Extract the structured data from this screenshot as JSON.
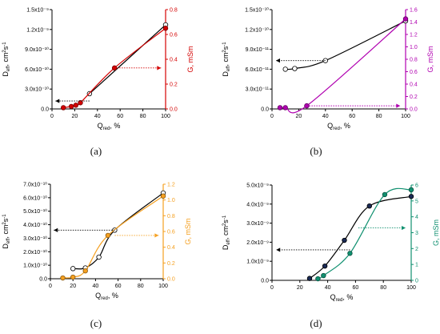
{
  "chart_data": [
    {
      "id": "a",
      "type": "line",
      "caption": "(a)",
      "xlabel": "Q",
      "xlabel_sub": "red",
      "xlabel_unit": ", %",
      "ylabel_left": "D",
      "ylabel_left_sub": "eff",
      "ylabel_left_unit": ", cm",
      "ylabel_left_sup": "2",
      "ylabel_left_tail": "s",
      "ylabel_left_sup2": "-1",
      "ylabel_right": "G, mSm",
      "xlim": [
        0,
        100
      ],
      "xticks": [
        "0",
        "20",
        "40",
        "60",
        "80",
        "100"
      ],
      "ylim_left": [
        0,
        1.5e-09
      ],
      "yticks_left": [
        "0.0",
        "3.0x10⁻¹⁰",
        "6.0x10⁻¹⁰",
        "9.0x10⁻¹⁰",
        "1.2x10⁻⁹",
        "1.5x10⁻⁹"
      ],
      "ylim_right": [
        0,
        0.8
      ],
      "yticks_right": [
        "0.0",
        "0.2",
        "0.4",
        "0.6",
        "0.8"
      ],
      "right_color": "#d40000",
      "left_color": "#000000",
      "series": [
        {
          "axis": "left",
          "marker": "open",
          "x": [
            33,
            100
          ],
          "y": [
            2.3e-10,
            1.27e-09
          ]
        },
        {
          "axis": "right",
          "marker": "filled",
          "x": [
            10,
            17,
            21,
            25,
            55,
            100
          ],
          "y": [
            0.01,
            0.02,
            0.03,
            0.05,
            0.33,
            0.65
          ]
        }
      ],
      "arrows": [
        {
          "dir": "left",
          "axis": "left",
          "y": 1.2e-10,
          "x_from": 33,
          "x_to": 3
        },
        {
          "dir": "right",
          "axis": "right",
          "y": 0.33,
          "x_from": 55,
          "x_to": 96
        }
      ]
    },
    {
      "id": "b",
      "type": "line",
      "caption": "(b)",
      "xlabel": "Q",
      "xlabel_sub": "red",
      "xlabel_unit": ", %",
      "ylabel_left": "D",
      "ylabel_left_sub": "eff",
      "ylabel_left_unit": ", cm",
      "ylabel_left_sup": "2",
      "ylabel_left_tail": "s",
      "ylabel_left_sup2": "-1",
      "ylabel_right": "G, mSm",
      "xlim": [
        0,
        100
      ],
      "xticks": [
        "0",
        "20",
        "40",
        "60",
        "80",
        "100"
      ],
      "ylim_left": [
        0,
        1.5e-10
      ],
      "yticks_left": [
        "0.0",
        "3.0x10⁻¹¹",
        "6.0x10⁻¹¹",
        "9.0x10⁻¹¹",
        "1.2x10⁻¹⁰",
        "1.5x10⁻¹⁰"
      ],
      "ylim_right": [
        0,
        1.6
      ],
      "yticks_right": [
        "0.0",
        "0.2",
        "0.4",
        "0.6",
        "0.8",
        "1.0",
        "1.2",
        "1.4",
        "1.6"
      ],
      "right_color": "#b000b0",
      "left_color": "#000000",
      "series": [
        {
          "axis": "left",
          "marker": "open",
          "x": [
            10,
            17,
            40,
            100
          ],
          "y": [
            6e-11,
            6.1e-11,
            7.3e-11,
            1.33e-10
          ]
        },
        {
          "axis": "right",
          "marker": "filled",
          "x": [
            6,
            10,
            26,
            100
          ],
          "y": [
            0.02,
            0.02,
            0.05,
            1.45
          ]
        }
      ],
      "arrows": [
        {
          "dir": "left",
          "axis": "left",
          "y": 7.3e-11,
          "x_from": 40,
          "x_to": 3
        },
        {
          "dir": "right",
          "axis": "right",
          "y": 0.05,
          "x_from": 26,
          "x_to": 96
        }
      ]
    },
    {
      "id": "c",
      "type": "line",
      "caption": "(c)",
      "xlabel": "Q",
      "xlabel_sub": "red",
      "xlabel_unit": ", %",
      "ylabel_left": "D",
      "ylabel_left_sub": "eff",
      "ylabel_left_unit": ", cm",
      "ylabel_left_sup": "2",
      "ylabel_left_tail": "s",
      "ylabel_left_sup2": "-1",
      "ylabel_right": "G, mSm",
      "xlim": [
        0,
        100
      ],
      "xticks": [
        "0",
        "20",
        "40",
        "60",
        "80",
        "100"
      ],
      "ylim_left": [
        0,
        7e-10
      ],
      "yticks_left": [
        "0.0",
        "1.0x10⁻¹⁰",
        "2.0x10⁻¹⁰",
        "3.0x10⁻¹⁰",
        "4.0x10⁻¹⁰",
        "5.0x10⁻¹⁰",
        "6.0x10⁻¹⁰",
        "7.0x10⁻¹⁰"
      ],
      "ylim_right": [
        0,
        1.2
      ],
      "yticks_right": [
        "0.0",
        "0.2",
        "0.4",
        "0.6",
        "0.8",
        "1.0",
        "1.2"
      ],
      "right_color": "#f5a020",
      "left_color": "#000000",
      "series": [
        {
          "axis": "left",
          "marker": "open",
          "x": [
            20,
            31,
            43,
            57,
            100
          ],
          "y": [
            7.5e-11,
            8e-11,
            1.6e-10,
            3.6e-10,
            6.35e-10
          ]
        },
        {
          "axis": "right",
          "marker": "filled",
          "x": [
            11,
            20,
            31,
            51,
            100
          ],
          "y": [
            0.01,
            0.02,
            0.1,
            0.55,
            1.05
          ]
        }
      ],
      "arrows": [
        {
          "dir": "left",
          "axis": "left",
          "y": 3.6e-10,
          "x_from": 57,
          "x_to": 3
        },
        {
          "dir": "right",
          "axis": "right",
          "y": 0.55,
          "x_from": 57,
          "x_to": 96
        }
      ]
    },
    {
      "id": "d",
      "type": "line",
      "caption": "(d)",
      "xlabel": "Q",
      "xlabel_sub": "red",
      "xlabel_unit": ", %",
      "ylabel_left": "D",
      "ylabel_left_sub": "eff",
      "ylabel_left_unit": ", cm",
      "ylabel_left_sup": "2",
      "ylabel_left_tail": "s",
      "ylabel_left_sup2": "-1",
      "ylabel_right": "G, mSm",
      "xlim": [
        0,
        100
      ],
      "xticks": [
        "0",
        "20",
        "40",
        "60",
        "80",
        "100"
      ],
      "ylim_left": [
        0,
        5e-09
      ],
      "yticks_left": [
        "0.0",
        "1.0x10⁻⁹",
        "2.0x10⁻⁹",
        "3.0x10⁻⁹",
        "4.0x10⁻⁹",
        "5.0x10⁻⁹"
      ],
      "ylim_right": [
        0,
        6
      ],
      "yticks_right": [
        "0",
        "1",
        "2",
        "3",
        "4",
        "5",
        "6"
      ],
      "right_color": "#109070",
      "left_color": "#000000",
      "series": [
        {
          "axis": "left",
          "marker": "filled-dark",
          "x": [
            27,
            38,
            52,
            70,
            100
          ],
          "y": [
            1e-10,
            7.5e-10,
            2.1e-09,
            3.9e-09,
            4.4e-09
          ]
        },
        {
          "axis": "right",
          "marker": "filled",
          "x": [
            33,
            37,
            56,
            81,
            100
          ],
          "y": [
            0.1,
            0.3,
            1.7,
            5.4,
            5.7
          ]
        }
      ],
      "arrows": [
        {
          "dir": "left",
          "axis": "left",
          "y": 1.6e-09,
          "x_from": 56,
          "x_to": 3
        },
        {
          "dir": "right",
          "axis": "right",
          "y": 3.3,
          "x_from": 62,
          "x_to": 96
        }
      ]
    }
  ]
}
